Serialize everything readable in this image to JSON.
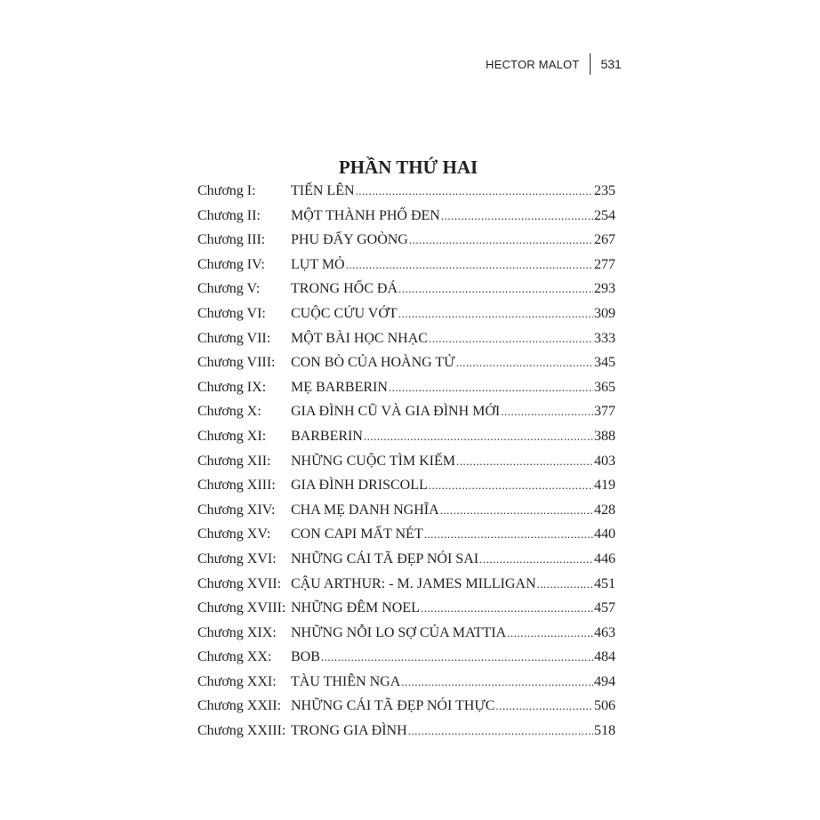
{
  "header": {
    "author": "HECTOR MALOT",
    "page_number": "531"
  },
  "part_title": "PHẦN THỨ HAI",
  "toc": [
    {
      "label": "Chương I:",
      "title": "TIẾN LÊN",
      "page": "235"
    },
    {
      "label": "Chương II:",
      "title": "MỘT THÀNH PHỐ ĐEN",
      "page": "254"
    },
    {
      "label": "Chương III:",
      "title": "PHU ĐẨY GOÒNG",
      "page": "267"
    },
    {
      "label": "Chương IV:",
      "title": "LỤT MỎ",
      "page": "277"
    },
    {
      "label": "Chương V:",
      "title": "TRONG HỐC ĐÁ",
      "page": "293"
    },
    {
      "label": "Chương VI:",
      "title": "CUỘC CỨU VỚT",
      "page": "309"
    },
    {
      "label": "Chương VII:",
      "title": "MỘT BÀI HỌC NHẠC",
      "page": "333"
    },
    {
      "label": "Chương VIII:",
      "title": "CON BÒ CỦA HOÀNG TỬ",
      "page": "345"
    },
    {
      "label": "Chương IX:",
      "title": "MẸ BARBERIN",
      "page": "365"
    },
    {
      "label": "Chương X:",
      "title": "GIA ĐÌNH CŨ VÀ GIA ĐÌNH MỚI",
      "page": "377"
    },
    {
      "label": "Chương XI:",
      "title": "BARBERIN",
      "page": "388"
    },
    {
      "label": "Chương XII:",
      "title": "NHỮNG CUỘC TÌM KIẾM",
      "page": "403"
    },
    {
      "label": "Chương XIII:",
      "title": "GIA ĐÌNH DRISCOLL",
      "page": "419"
    },
    {
      "label": "Chương XIV:",
      "title": "CHA MẸ DANH NGHĨA",
      "page": "428"
    },
    {
      "label": "Chương XV:",
      "title": "CON CAPI MẤT NÉT",
      "page": "440"
    },
    {
      "label": "Chương XVI:",
      "title": "NHỮNG CÁI TÃ ĐẸP NÓI SAI",
      "page": "446"
    },
    {
      "label": "Chương XVII:",
      "title": "CẬU ARTHUR: - M. JAMES MILLIGAN",
      "page": "451"
    },
    {
      "label": "Chương XVIII:",
      "title": "NHỮNG ĐÊM NOEL",
      "page": "457"
    },
    {
      "label": "Chương XIX:",
      "title": "NHỮNG NỖI LO SỢ CỦA MATTIA",
      "page": "463"
    },
    {
      "label": "Chương XX:",
      "title": "BOB",
      "page": "484"
    },
    {
      "label": "Chương XXI:",
      "title": "TÀU THIÊN NGA",
      "page": "494"
    },
    {
      "label": "Chương XXII:",
      "title": "NHỮNG CÁI TÃ ĐẸP NÓI THỰC",
      "page": "506"
    },
    {
      "label": "Chương XXIII:",
      "title": "TRONG GIA ĐÌNH",
      "page": "518"
    }
  ]
}
